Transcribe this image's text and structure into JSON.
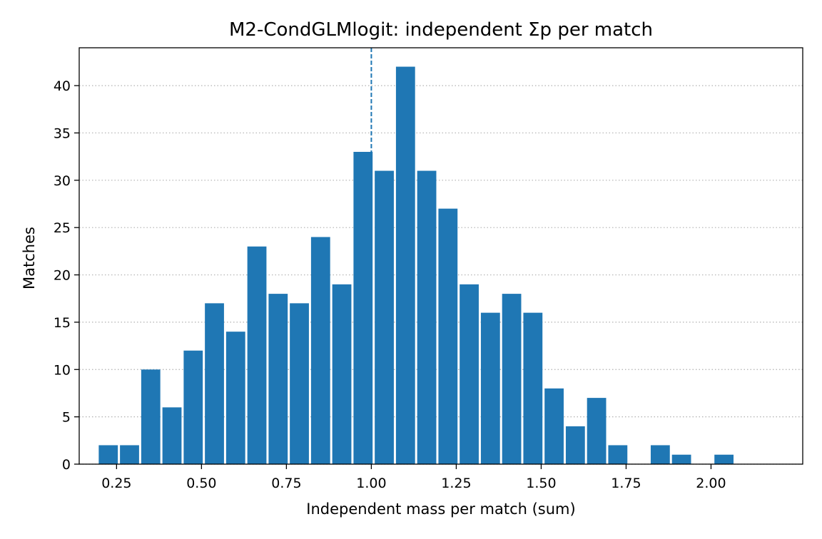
{
  "chart_data": {
    "type": "bar",
    "title": "M2-CondGLMlogit: independent Σp per match",
    "xlabel": "Independent mass per match (sum)",
    "ylabel": "Matches",
    "xlim": [
      0.14,
      2.27
    ],
    "ylim": [
      0,
      44
    ],
    "bin_width": 0.0625,
    "bin_start": 0.1975,
    "x_ticks": [
      "0.25",
      "0.50",
      "0.75",
      "1.00",
      "1.25",
      "1.50",
      "1.75",
      "2.00"
    ],
    "y_ticks": [
      "0",
      "5",
      "10",
      "15",
      "20",
      "25",
      "30",
      "35",
      "40"
    ],
    "counts": [
      2,
      2,
      10,
      6,
      12,
      17,
      14,
      23,
      18,
      17,
      24,
      19,
      33,
      31,
      42,
      31,
      27,
      19,
      16,
      18,
      16,
      8,
      4,
      7,
      2,
      0,
      2,
      1,
      0,
      1
    ],
    "reference_line_x": 1.0,
    "grid": "y-dotted",
    "bar_color": "#1f77b4",
    "ref_line_color": "#1f77b4"
  }
}
